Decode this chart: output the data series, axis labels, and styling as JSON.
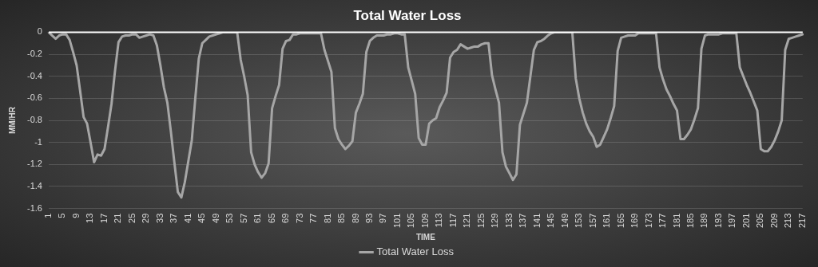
{
  "chart_data": {
    "type": "line",
    "title": "Total Water Loss",
    "xlabel": "TIME",
    "ylabel": "MM/HR",
    "categories": [
      "1",
      null,
      null,
      null,
      "5",
      null,
      null,
      null,
      "9",
      null,
      null,
      null,
      "13",
      null,
      null,
      null,
      "17",
      null,
      null,
      null,
      "21",
      null,
      null,
      null,
      "25",
      null,
      null,
      null,
      "29",
      null,
      null,
      null,
      "33",
      null,
      null,
      null,
      "37",
      null,
      null,
      null,
      "41",
      null,
      null,
      null,
      "45",
      null,
      null,
      null,
      "49",
      null,
      null,
      null,
      "53",
      null,
      null,
      null,
      "57",
      null,
      null,
      null,
      "61",
      null,
      null,
      null,
      "65",
      null,
      null,
      null,
      "69",
      null,
      null,
      null,
      "73",
      null,
      null,
      null,
      "77",
      null,
      null,
      null,
      "81",
      null,
      null,
      null,
      "85",
      null,
      null,
      null,
      "89",
      null,
      null,
      null,
      "93",
      null,
      null,
      null,
      "97",
      null,
      null,
      null,
      "101",
      null,
      null,
      null,
      "105",
      null,
      null,
      null,
      "109",
      null,
      null,
      null,
      "113",
      null,
      null,
      null,
      "117",
      null,
      null,
      null,
      "121",
      null,
      null,
      null,
      "125",
      null,
      null,
      null,
      "129",
      null,
      null,
      null,
      "133",
      null,
      null,
      null,
      "137",
      null,
      null,
      null,
      "141",
      null,
      null,
      null,
      "145",
      null,
      null,
      null,
      "149",
      null,
      null,
      null,
      "153",
      null,
      null,
      null,
      "157",
      null,
      null,
      null,
      "161",
      null,
      null,
      null,
      "165",
      null,
      null,
      null,
      "169",
      null,
      null,
      null,
      "173",
      null,
      null,
      null,
      "177",
      null,
      null,
      null,
      "181",
      null,
      null,
      null,
      "185",
      null,
      null,
      null,
      "189",
      null,
      null,
      null,
      "193",
      null,
      null,
      null,
      "197",
      null,
      null,
      null,
      "201",
      null,
      null,
      null,
      "205",
      null,
      null,
      null,
      "209",
      null,
      null,
      null,
      "213",
      null,
      null,
      null,
      "217"
    ],
    "series": [
      {
        "name": "Total Water Loss",
        "color": "#a6a6a6",
        "values": [
          0,
          -0.03,
          -0.06,
          -0.03,
          -0.02,
          -0.02,
          -0.07,
          -0.18,
          -0.3,
          -0.53,
          -0.77,
          -0.83,
          -1.0,
          -1.18,
          -1.11,
          -1.12,
          -1.06,
          -0.86,
          -0.65,
          -0.35,
          -0.09,
          -0.04,
          -0.03,
          -0.03,
          -0.02,
          -0.02,
          -0.05,
          -0.04,
          -0.03,
          -0.02,
          -0.03,
          -0.12,
          -0.3,
          -0.5,
          -0.64,
          -0.9,
          -1.18,
          -1.45,
          -1.5,
          -1.36,
          -1.17,
          -0.98,
          -0.6,
          -0.24,
          -0.1,
          -0.07,
          -0.04,
          -0.03,
          -0.02,
          -0.01,
          0,
          0,
          0,
          0,
          0,
          -0.25,
          -0.4,
          -0.57,
          -1.09,
          -1.2,
          -1.27,
          -1.32,
          -1.28,
          -1.19,
          -0.69,
          -0.58,
          -0.48,
          -0.15,
          -0.08,
          -0.07,
          -0.02,
          -0.02,
          -0.01,
          -0.01,
          -0.01,
          -0.01,
          -0.01,
          -0.01,
          -0.01,
          -0.16,
          -0.26,
          -0.36,
          -0.87,
          -0.97,
          -1.02,
          -1.06,
          -1.03,
          -0.99,
          -0.73,
          -0.65,
          -0.56,
          -0.18,
          -0.08,
          -0.05,
          -0.03,
          -0.03,
          -0.03,
          -0.02,
          -0.02,
          -0.01,
          -0.01,
          -0.02,
          -0.02,
          -0.32,
          -0.44,
          -0.56,
          -0.96,
          -1.02,
          -1.02,
          -0.83,
          -0.8,
          -0.78,
          -0.68,
          -0.62,
          -0.55,
          -0.23,
          -0.18,
          -0.16,
          -0.11,
          -0.13,
          -0.15,
          -0.14,
          -0.13,
          -0.13,
          -0.11,
          -0.1,
          -0.1,
          -0.39,
          -0.52,
          -0.64,
          -1.09,
          -1.22,
          -1.28,
          -1.34,
          -1.29,
          -0.84,
          -0.74,
          -0.64,
          -0.4,
          -0.16,
          -0.09,
          -0.08,
          -0.06,
          -0.03,
          -0.01,
          0,
          0,
          0,
          0,
          0,
          0,
          -0.42,
          -0.6,
          -0.73,
          -0.83,
          -0.9,
          -0.95,
          -1.04,
          -1.02,
          -0.95,
          -0.88,
          -0.78,
          -0.67,
          -0.17,
          -0.05,
          -0.04,
          -0.03,
          -0.03,
          -0.03,
          -0.01,
          -0.01,
          -0.01,
          -0.01,
          -0.01,
          -0.01,
          -0.32,
          -0.43,
          -0.52,
          -0.58,
          -0.65,
          -0.71,
          -0.97,
          -0.97,
          -0.93,
          -0.88,
          -0.79,
          -0.69,
          -0.15,
          -0.03,
          -0.02,
          -0.02,
          -0.02,
          -0.02,
          -0.01,
          -0.01,
          -0.01,
          -0.01,
          -0.01,
          -0.32,
          -0.4,
          -0.48,
          -0.55,
          -0.63,
          -0.71,
          -1.06,
          -1.08,
          -1.08,
          -1.04,
          -0.98,
          -0.9,
          -0.8,
          -0.16,
          -0.06,
          -0.05,
          -0.04,
          -0.03,
          -0.02
        ]
      }
    ],
    "ylim": [
      -1.6,
      0
    ],
    "yticks": [
      -1.6,
      -1.4,
      -1.2,
      -1,
      -0.8,
      -0.6,
      -0.4,
      -0.2,
      0
    ],
    "grid": "y",
    "legend": "bottom",
    "marker": "none",
    "line_style": "solid",
    "ref_lines": [
      {
        "axis": "y",
        "value": 0,
        "color": "#ffffff"
      }
    ]
  }
}
